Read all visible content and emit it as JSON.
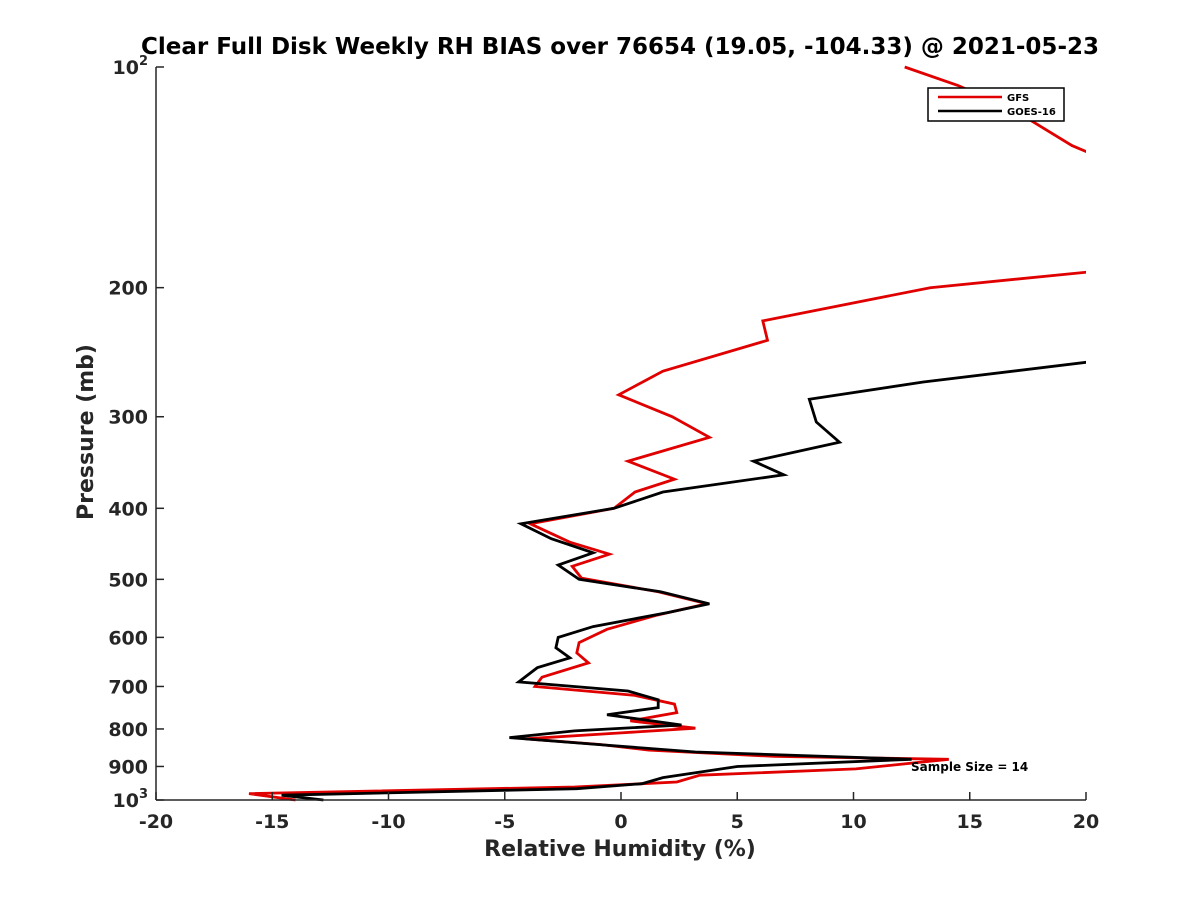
{
  "chart_data": {
    "type": "line",
    "title": "Clear Full Disk Weekly RH BIAS over 76654 (19.05, -104.33) @ 2021-05-23",
    "xlabel": "Relative Humidity (%)",
    "ylabel": "Pressure (mb)",
    "xlim": [
      -20,
      20
    ],
    "ylim": [
      1000,
      100
    ],
    "yscale": "log",
    "x_ticks": [
      -20,
      -15,
      -10,
      -5,
      0,
      5,
      10,
      15,
      20
    ],
    "x_tick_labels": [
      "-20",
      "-15",
      "-10",
      "-5",
      "0",
      "5",
      "10",
      "15",
      "20"
    ],
    "y_ticks": [
      100,
      200,
      300,
      400,
      500,
      600,
      700,
      800,
      900,
      1000
    ],
    "y_tick_labels": [
      {
        "base": "10",
        "exp": "2"
      },
      {
        "base": "200",
        "exp": ""
      },
      {
        "base": "300",
        "exp": ""
      },
      {
        "base": "400",
        "exp": ""
      },
      {
        "base": "500",
        "exp": ""
      },
      {
        "base": "600",
        "exp": ""
      },
      {
        "base": "700",
        "exp": ""
      },
      {
        "base": "800",
        "exp": ""
      },
      {
        "base": "900",
        "exp": ""
      },
      {
        "base": "10",
        "exp": "3"
      }
    ],
    "legend_position": "top-right",
    "annotation": "Sample Size = 14",
    "series": [
      {
        "name": "GFS",
        "color": "#e00000",
        "points": [
          [
            12.2,
            100
          ],
          [
            14.5,
            106
          ],
          [
            16.8,
            114
          ],
          [
            19.4,
            128
          ],
          [
            20.4,
            132
          ],
          [
            20.4,
            190
          ],
          [
            13.3,
            200
          ],
          [
            6.1,
            222
          ],
          [
            6.3,
            236
          ],
          [
            1.8,
            260
          ],
          [
            -0.1,
            280
          ],
          [
            2.2,
            300
          ],
          [
            3.8,
            320
          ],
          [
            0.3,
            345
          ],
          [
            2.3,
            365
          ],
          [
            0.6,
            380
          ],
          [
            -0.3,
            400
          ],
          [
            -3.9,
            420
          ],
          [
            -2.2,
            445
          ],
          [
            -0.5,
            462
          ],
          [
            -2.1,
            480
          ],
          [
            -1.7,
            498
          ],
          [
            1.6,
            520
          ],
          [
            3.7,
            540
          ],
          [
            1.5,
            560
          ],
          [
            -0.6,
            585
          ],
          [
            -1.8,
            610
          ],
          [
            -1.9,
            630
          ],
          [
            -1.4,
            650
          ],
          [
            -3.4,
            680
          ],
          [
            -3.7,
            700
          ],
          [
            0.6,
            720
          ],
          [
            2.3,
            740
          ],
          [
            2.4,
            760
          ],
          [
            0.4,
            780
          ],
          [
            3.2,
            798
          ],
          [
            0.0,
            810
          ],
          [
            -4.1,
            825
          ],
          [
            -0.9,
            840
          ],
          [
            1.2,
            855
          ],
          [
            6.6,
            872
          ],
          [
            14.1,
            880
          ],
          [
            10.1,
            907
          ],
          [
            3.4,
            925
          ],
          [
            2.4,
            945
          ],
          [
            -2.0,
            960
          ],
          [
            -16.0,
            980
          ],
          [
            -14.0,
            1000
          ]
        ]
      },
      {
        "name": "GOES-16",
        "color": "#000000",
        "points": [
          [
            20.4,
            252
          ],
          [
            13.0,
            269
          ],
          [
            8.1,
            284
          ],
          [
            8.4,
            305
          ],
          [
            9.4,
            325
          ],
          [
            5.7,
            345
          ],
          [
            7.0,
            360
          ],
          [
            1.8,
            380
          ],
          [
            -0.3,
            400
          ],
          [
            -4.3,
            420
          ],
          [
            -3.0,
            440
          ],
          [
            -1.2,
            460
          ],
          [
            -2.7,
            478
          ],
          [
            -1.8,
            500
          ],
          [
            1.7,
            520
          ],
          [
            3.8,
            540
          ],
          [
            2.0,
            555
          ],
          [
            -1.2,
            580
          ],
          [
            -2.7,
            600
          ],
          [
            -2.8,
            620
          ],
          [
            -2.2,
            640
          ],
          [
            -3.6,
            660
          ],
          [
            -4.4,
            690
          ],
          [
            0.3,
            710
          ],
          [
            1.6,
            730
          ],
          [
            1.6,
            748
          ],
          [
            -0.6,
            765
          ],
          [
            2.6,
            790
          ],
          [
            -2.0,
            805
          ],
          [
            -4.8,
            822
          ],
          [
            -1.0,
            840
          ],
          [
            3.2,
            860
          ],
          [
            12.5,
            880
          ],
          [
            5.0,
            900
          ],
          [
            1.8,
            932
          ],
          [
            0.9,
            950
          ],
          [
            -1.9,
            965
          ],
          [
            -14.6,
            985
          ],
          [
            -12.8,
            1000
          ]
        ]
      }
    ]
  }
}
